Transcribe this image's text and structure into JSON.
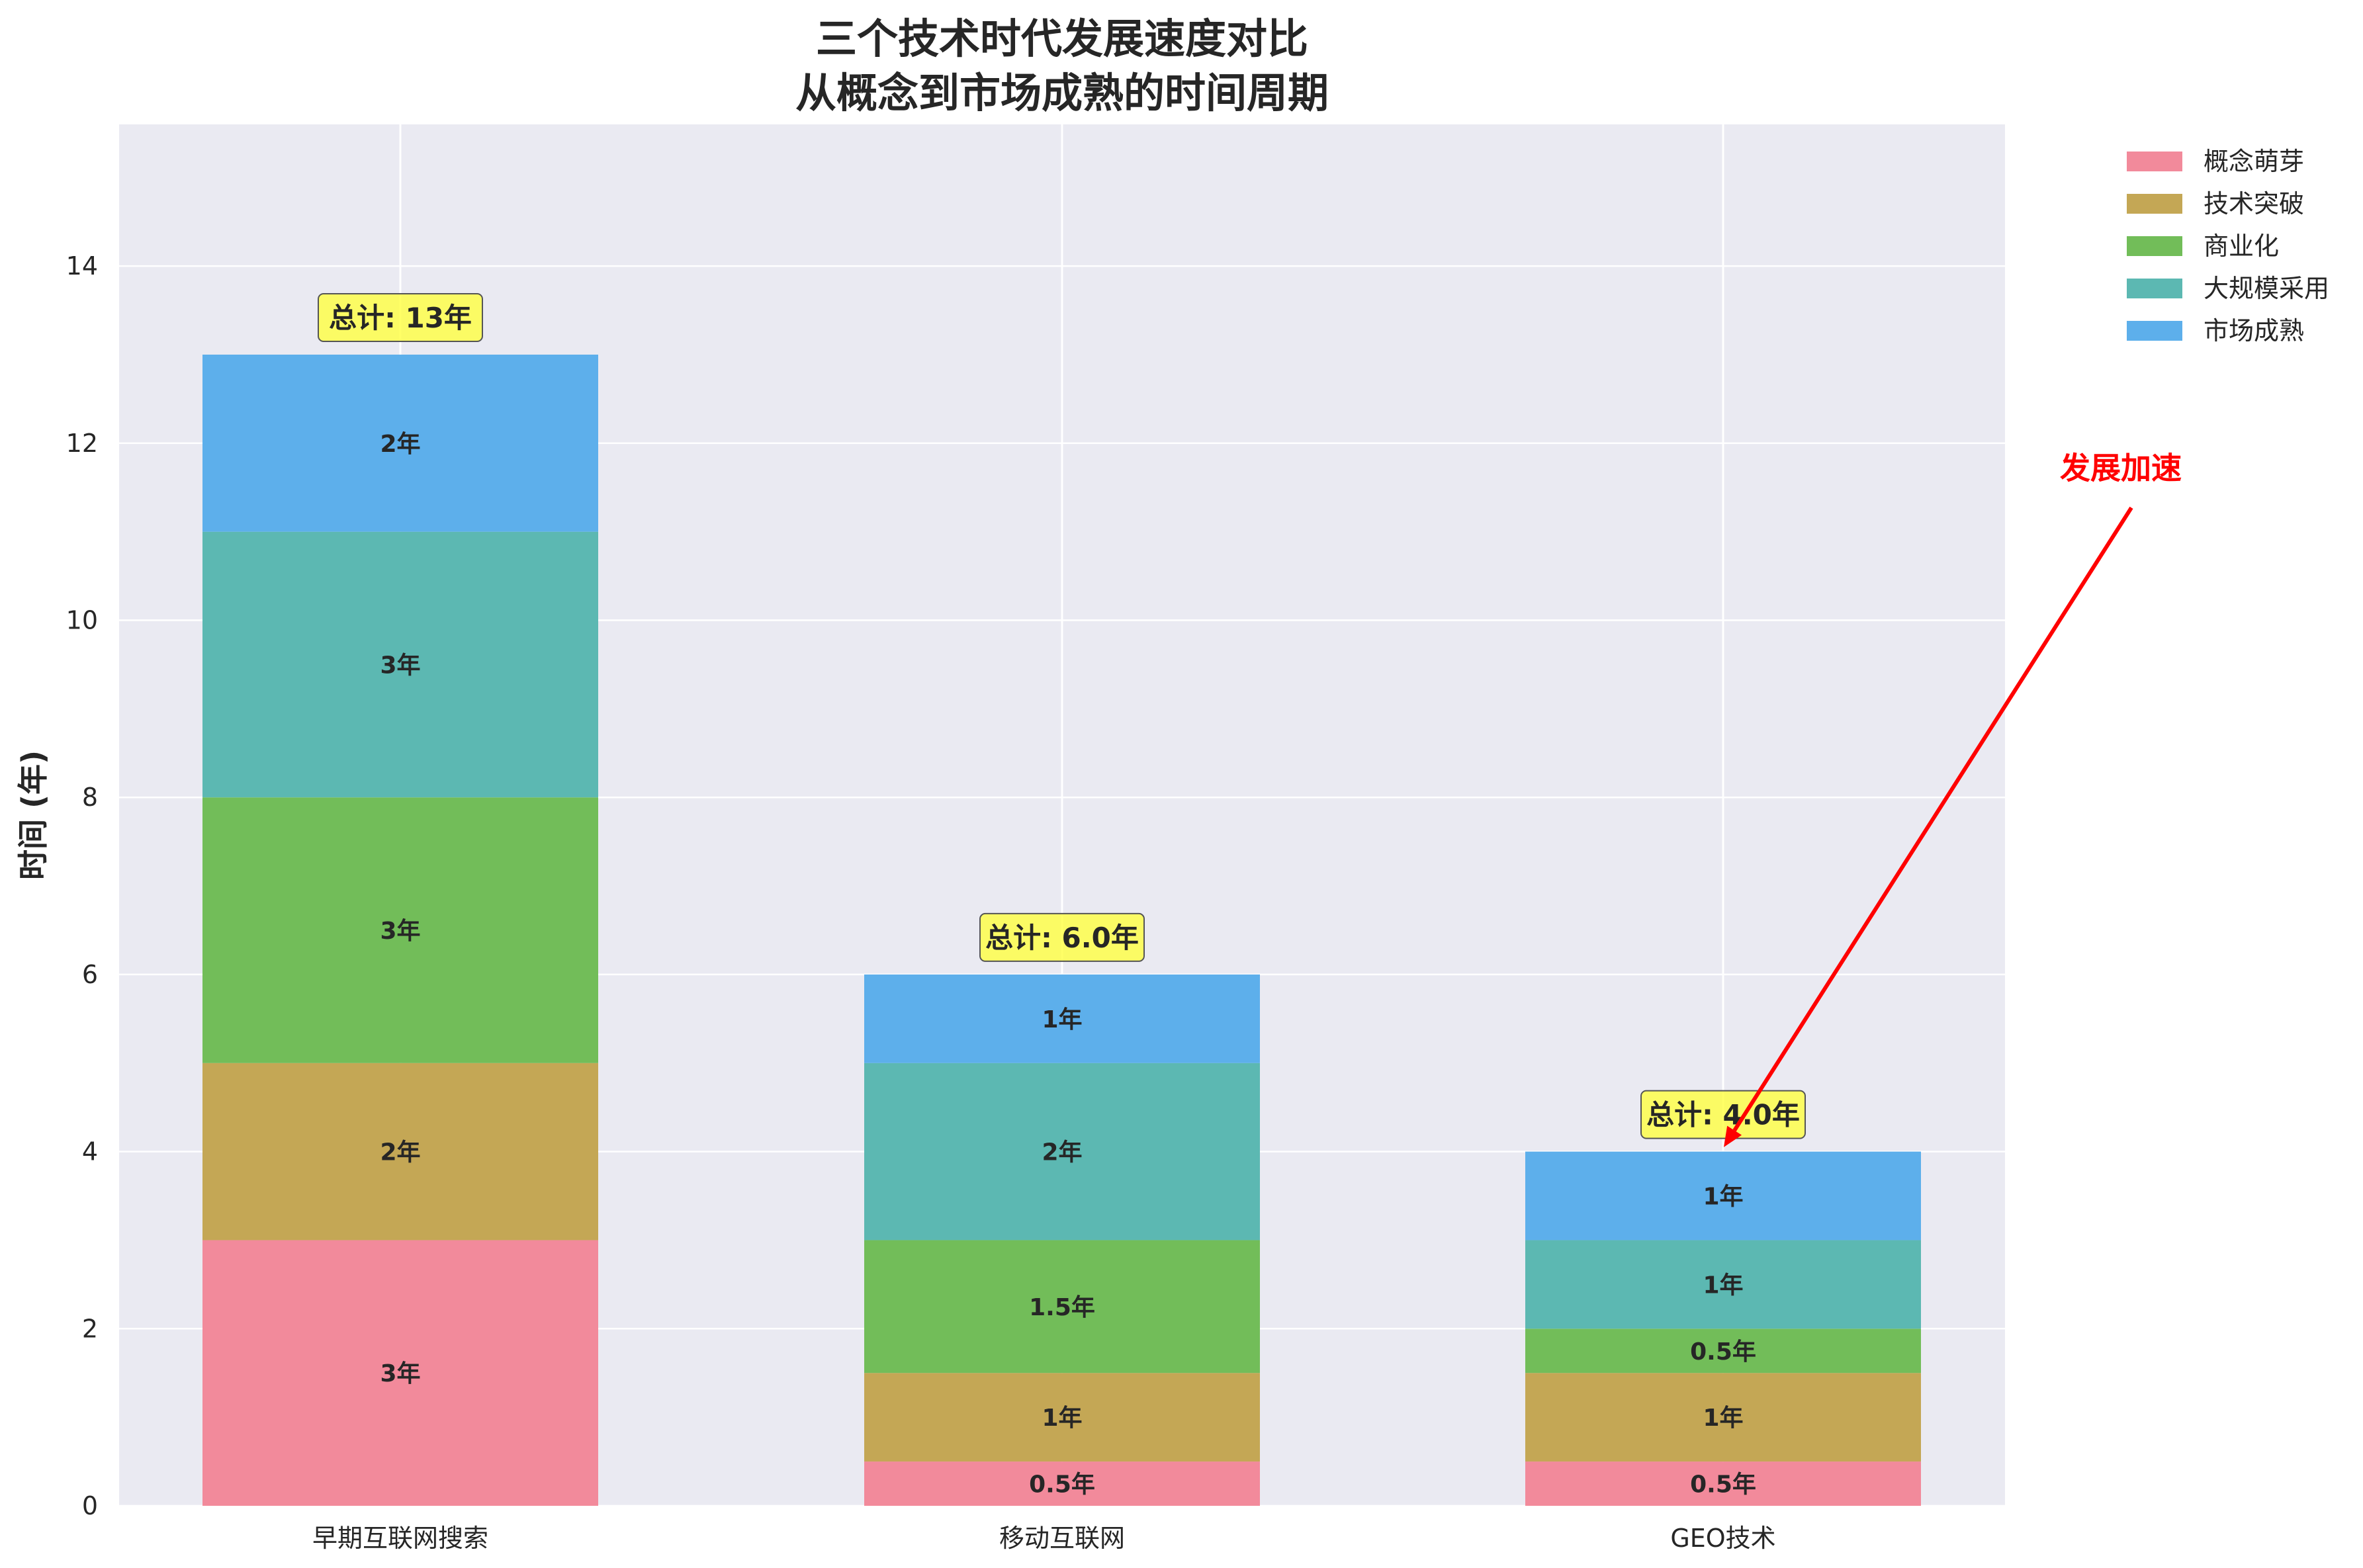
{
  "chart_data": {
    "type": "bar",
    "stacked": true,
    "title_lines": [
      "三个技术时代发展速度对比",
      "从概念到市场成熟的时间周期"
    ],
    "xlabel": "",
    "ylabel": "时间 (年)",
    "ylim": [
      0,
      15.6
    ],
    "yticks": [
      0,
      2,
      4,
      6,
      8,
      10,
      12,
      14
    ],
    "grid": true,
    "legend_position": "outside-top-right",
    "categories": [
      "早期互联网搜索",
      "移动互联网",
      "GEO技术"
    ],
    "series": [
      {
        "name": "概念萌芽",
        "color": "#f28a9b",
        "values": [
          3,
          0.5,
          0.5
        ],
        "labels": [
          "3年",
          "0.5年",
          "0.5年"
        ]
      },
      {
        "name": "技术突破",
        "color": "#c4a755",
        "values": [
          2,
          1,
          1
        ],
        "labels": [
          "2年",
          "1年",
          "1年"
        ]
      },
      {
        "name": "商业化",
        "color": "#72bd59",
        "values": [
          3,
          1.5,
          0.5
        ],
        "labels": [
          "3年",
          "1.5年",
          "0.5年"
        ]
      },
      {
        "name": "大规模采用",
        "color": "#5cb8b2",
        "values": [
          3,
          2,
          1
        ],
        "labels": [
          "3年",
          "2年",
          "1年"
        ]
      },
      {
        "name": "市场成熟",
        "color": "#5dafeb",
        "values": [
          2,
          1,
          1
        ],
        "labels": [
          "2年",
          "1年",
          "1年"
        ]
      }
    ],
    "totals": [
      13,
      6.0,
      4.0
    ],
    "total_labels": [
      "总计: 13年",
      "总计: 6.0年",
      "总计: 4.0年"
    ],
    "annotation": {
      "text": "发展加速",
      "text_at": [
        2.6,
        11.6
      ],
      "arrow_to": [
        2.0,
        4.05
      ],
      "color": "#ff0000"
    },
    "colors": {
      "plot_background": "#eaeaf2",
      "grid": "#ffffff",
      "total_box": "#ffff40"
    }
  }
}
